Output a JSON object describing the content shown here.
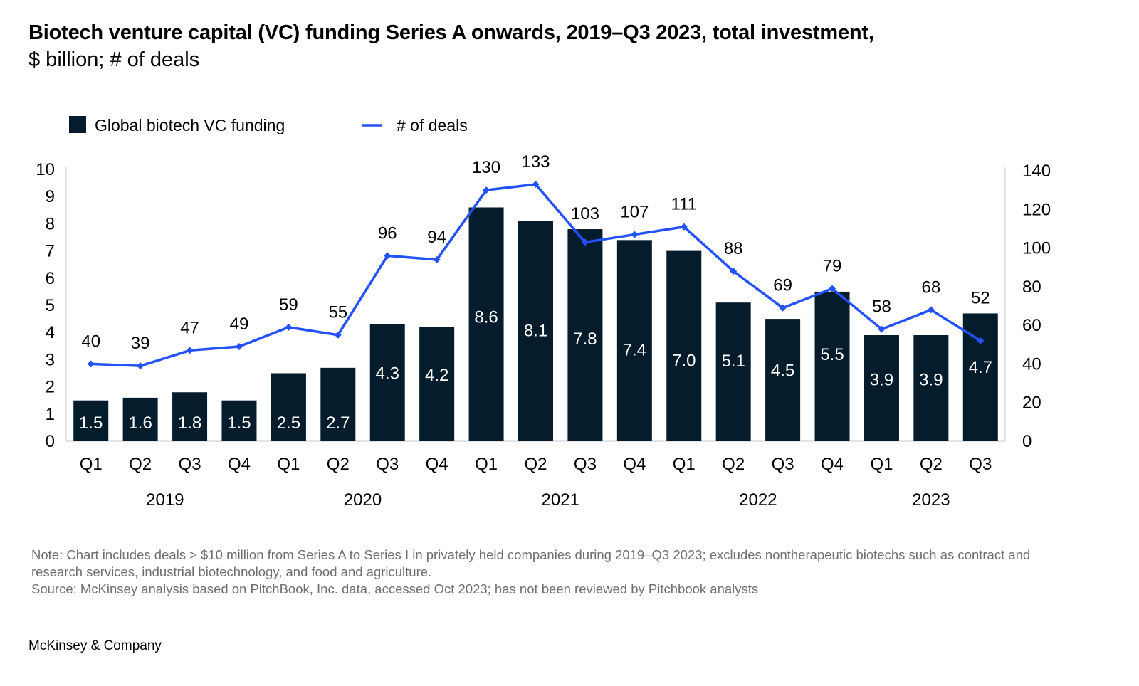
{
  "header": {
    "title": "Biotech venture capital (VC) funding Series A onwards, 2019–Q3 2023, total investment,",
    "subtitle": "$ billion; # of deals"
  },
  "chart_data": {
    "type": "bar",
    "title": "Biotech venture capital (VC) funding Series A onwards, 2019–Q3 2023, total investment,",
    "subtitle": "$ billion; # of deals",
    "categories": [
      "Q1",
      "Q2",
      "Q3",
      "Q4",
      "Q1",
      "Q2",
      "Q3",
      "Q4",
      "Q1",
      "Q2",
      "Q3",
      "Q4",
      "Q1",
      "Q2",
      "Q3",
      "Q4",
      "Q1",
      "Q2",
      "Q3"
    ],
    "groups": [
      {
        "label": "2019",
        "start": 0,
        "end": 3
      },
      {
        "label": "2020",
        "start": 4,
        "end": 7
      },
      {
        "label": "2021",
        "start": 8,
        "end": 11
      },
      {
        "label": "2022",
        "start": 12,
        "end": 15
      },
      {
        "label": "2023",
        "start": 16,
        "end": 18
      }
    ],
    "series": [
      {
        "name": "Global biotech VC funding",
        "type": "bar",
        "axis": "left",
        "color": "#051c2c",
        "values": [
          1.5,
          1.6,
          1.8,
          1.5,
          2.5,
          2.7,
          4.3,
          4.2,
          8.6,
          8.1,
          7.8,
          7.4,
          7.0,
          5.1,
          4.5,
          5.5,
          3.9,
          3.9,
          4.7
        ],
        "labels": [
          "1.5",
          "1.6",
          "1.8",
          "1.5",
          "2.5",
          "2.7",
          "4.3",
          "4.2",
          "8.6",
          "8.1",
          "7.8",
          "7.4",
          "7.0",
          "5.1",
          "4.5",
          "5.5",
          "3.9",
          "3.9",
          "4.7"
        ]
      },
      {
        "name": "# of deals",
        "type": "line",
        "axis": "right",
        "color": "#2251ff",
        "values": [
          40,
          39,
          47,
          49,
          59,
          55,
          96,
          94,
          130,
          133,
          103,
          107,
          111,
          88,
          69,
          79,
          58,
          68,
          52
        ],
        "labels": [
          "40",
          "39",
          "47",
          "49",
          "59",
          "55",
          "96",
          "94",
          "130",
          "133",
          "103",
          "107",
          "111",
          "88",
          "69",
          "79",
          "58",
          "68",
          "52"
        ]
      }
    ],
    "y_left": {
      "min": 0,
      "max": 10,
      "ticks": [
        "0",
        "1",
        "2",
        "3",
        "4",
        "5",
        "6",
        "7",
        "8",
        "9",
        "10"
      ]
    },
    "y_right": {
      "min": 0,
      "max": 140,
      "ticks": [
        "0",
        "20",
        "40",
        "60",
        "80",
        "100",
        "120",
        "140"
      ]
    },
    "legend_position": "top-left",
    "grid": false
  },
  "footer": {
    "note": "Note: Chart includes deals > $10 million from Series A to Series I in privately held companies during 2019–Q3 2023; excludes nontherapeutic biotechs such as contract and research services, industrial biotechnology, and food and agriculture.",
    "source": "Source: McKinsey analysis based on PitchBook, Inc. data, accessed Oct 2023; has not been reviewed by Pitchbook analysts",
    "brand": "McKinsey & Company"
  }
}
